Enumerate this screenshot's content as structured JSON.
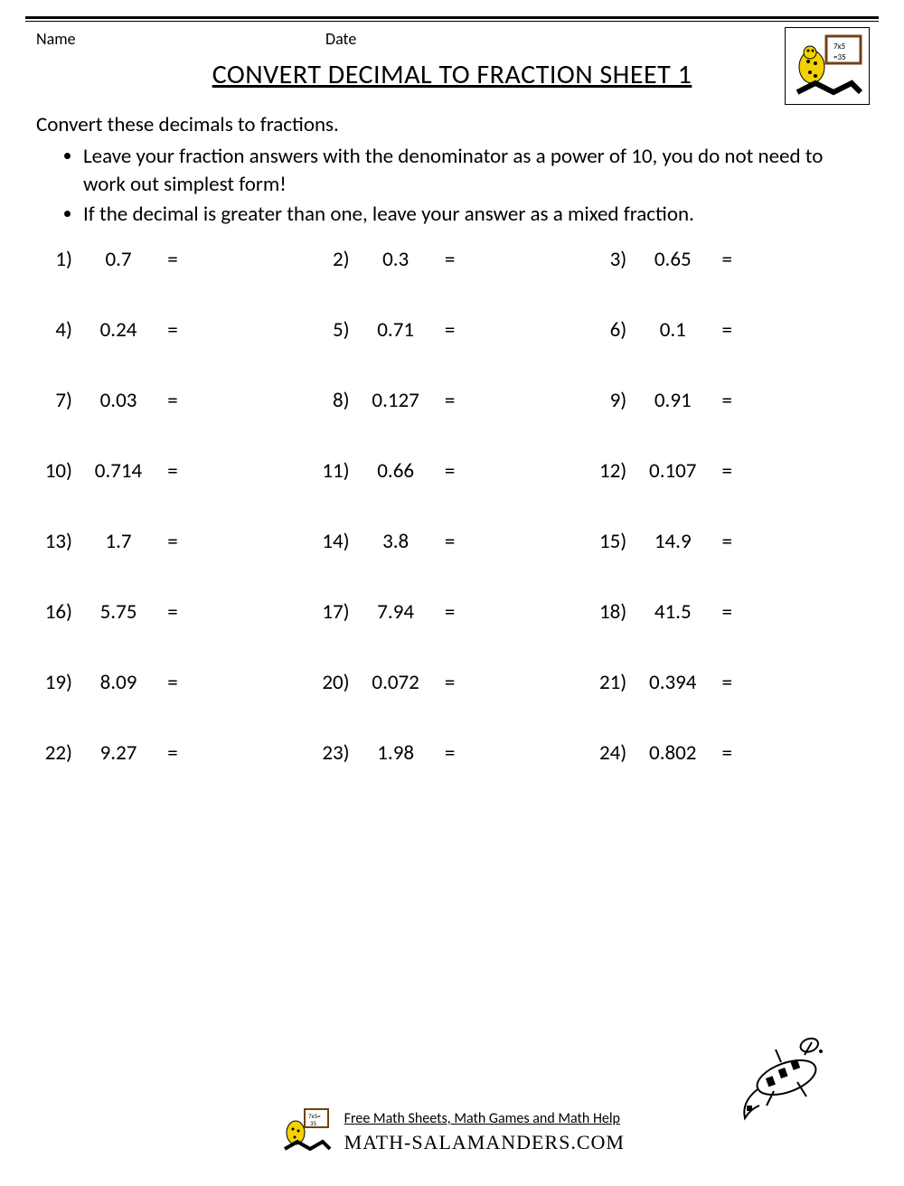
{
  "header": {
    "name_label": "Name",
    "date_label": "Date"
  },
  "title": "CONVERT DECIMAL TO FRACTION SHEET 1",
  "instructions": {
    "lead": "Convert these decimals to fractions.",
    "bullets": [
      "Leave your fraction answers with the denominator as a power of 10, you do not need to work out simplest form!",
      "If the decimal is greater than one, leave your answer as a mixed fraction."
    ]
  },
  "equals": "=",
  "problems": [
    {
      "n": "1)",
      "v": "0.7"
    },
    {
      "n": "2)",
      "v": "0.3"
    },
    {
      "n": "3)",
      "v": "0.65"
    },
    {
      "n": "4)",
      "v": "0.24"
    },
    {
      "n": "5)",
      "v": "0.71"
    },
    {
      "n": "6)",
      "v": "0.1"
    },
    {
      "n": "7)",
      "v": "0.03"
    },
    {
      "n": "8)",
      "v": "0.127"
    },
    {
      "n": "9)",
      "v": "0.91"
    },
    {
      "n": "10)",
      "v": "0.714"
    },
    {
      "n": "11)",
      "v": "0.66"
    },
    {
      "n": "12)",
      "v": "0.107"
    },
    {
      "n": "13)",
      "v": "1.7"
    },
    {
      "n": "14)",
      "v": "3.8"
    },
    {
      "n": "15)",
      "v": "14.9"
    },
    {
      "n": "16)",
      "v": "5.75"
    },
    {
      "n": "17)",
      "v": "7.94"
    },
    {
      "n": "18)",
      "v": "41.5"
    },
    {
      "n": "19)",
      "v": "8.09"
    },
    {
      "n": "20)",
      "v": "0.072"
    },
    {
      "n": "21)",
      "v": "0.394"
    },
    {
      "n": "22)",
      "v": "9.27"
    },
    {
      "n": "23)",
      "v": "1.98"
    },
    {
      "n": "24)",
      "v": "0.802"
    }
  ],
  "footer": {
    "line1": "Free Math Sheets, Math Games and Math Help",
    "line2": "MATH-SALAMANDERS.COM"
  },
  "colors": {
    "text": "#000000",
    "background": "#ffffff",
    "salamander_body": "#f2d100",
    "salamander_spots": "#000000",
    "board_frame": "#704214",
    "board_inner": "#ffffff"
  }
}
